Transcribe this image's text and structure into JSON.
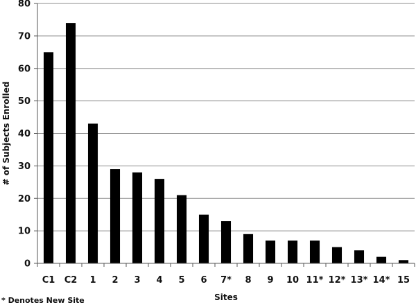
{
  "chart_data": {
    "type": "bar",
    "categories": [
      "C1",
      "C2",
      "1",
      "2",
      "3",
      "4",
      "5",
      "6",
      "7*",
      "8",
      "9",
      "10",
      "11*",
      "12*",
      "13*",
      "14*",
      "15"
    ],
    "values": [
      65,
      74,
      43,
      29,
      28,
      26,
      21,
      15,
      13,
      9,
      7,
      7,
      7,
      5,
      4,
      2,
      1
    ],
    "xlabel": "Sites",
    "ylabel": "# of Subjects Enrolled",
    "ylim": [
      0,
      80
    ],
    "yticks": [
      0,
      10,
      20,
      30,
      40,
      50,
      60,
      70,
      80
    ],
    "grid": true,
    "bar_color": "#000000",
    "grid_color": "#8c8c8c",
    "footnote": "* Denotes New Site"
  }
}
